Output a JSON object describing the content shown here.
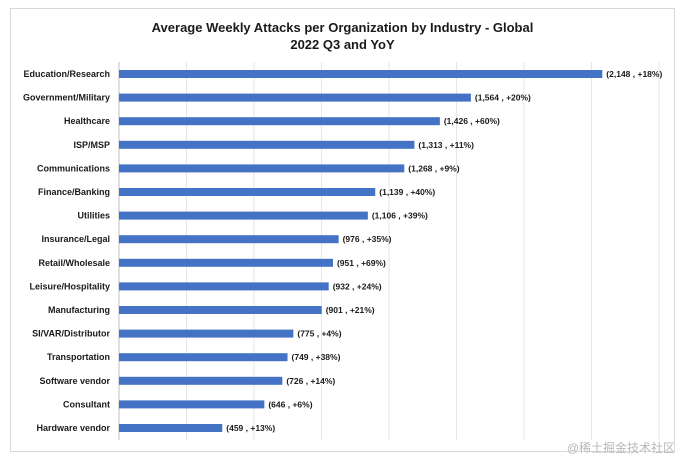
{
  "chart_data": {
    "type": "bar",
    "orientation": "horizontal",
    "title_lines": [
      "Average Weekly Attacks per Organization by Industry - Global",
      "2022 Q3 and YoY"
    ],
    "categories": [
      "Education/Research",
      "Government/Military",
      "Healthcare",
      "ISP/MSP",
      "Communications",
      "Finance/Banking",
      "Utilities",
      "Insurance/Legal",
      "Retail/Wholesale",
      "Leisure/Hospitality",
      "Manufacturing",
      "SI/VAR/Distributor",
      "Transportation",
      "Software vendor",
      "Consultant",
      "Hardware vendor"
    ],
    "values": [
      2148,
      1564,
      1426,
      1313,
      1268,
      1139,
      1106,
      976,
      951,
      932,
      901,
      775,
      749,
      726,
      646,
      459
    ],
    "data_labels": [
      "(2,148 , +18%)",
      "(1,564 , +20%)",
      "(1,426 , +60%)",
      "(1,313 , +11%)",
      "(1,268 , +9%)",
      "(1,139 , +40%)",
      "(1,106 , +39%)",
      "(976 , +35%)",
      "(951 , +69%)",
      "(932 , +24%)",
      "(901 , +21%)",
      "(775 , +4%)",
      "(749 , +38%)",
      "(726 , +14%)",
      "(646 , +6%)",
      "(459 , +13%)"
    ],
    "xlim": [
      0,
      2400
    ],
    "grid": true,
    "bar_color": "#4472c4"
  },
  "watermark": "@稀土掘金技术社区"
}
